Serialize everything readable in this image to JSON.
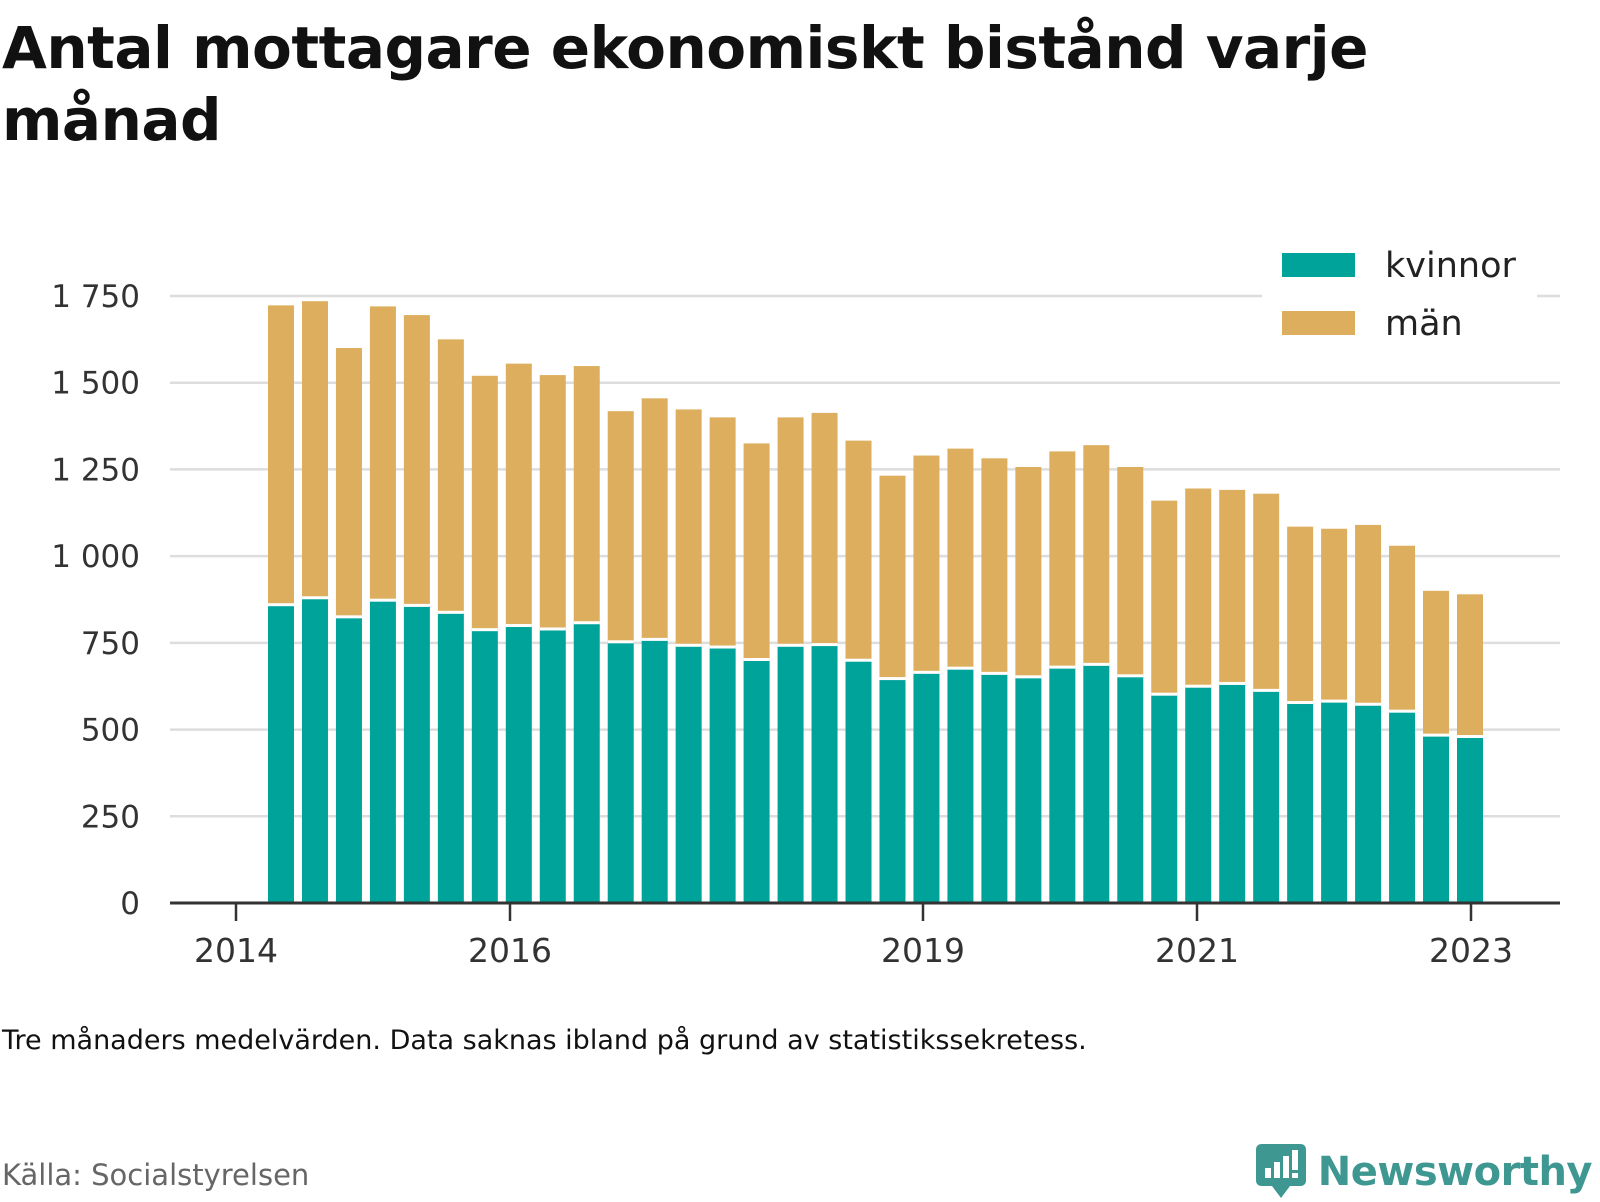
{
  "title": "Antal mottagare ekonomiskt bistånd varje månad",
  "note": "Tre månaders medelvärden. Data saknas ibland på grund av statistikssekretess.",
  "source": "Källa: Socialstyrelsen",
  "brand": "Newsworthy",
  "colors": {
    "kvinnor": "#00a399",
    "man": "#dcae5d",
    "grid": "#dddddd",
    "axis": "#333333"
  },
  "chart_data": {
    "type": "bar",
    "stacked": true,
    "x_tick_labels": [
      "2014",
      "2016",
      "2019",
      "2021",
      "2023"
    ],
    "y_ticks": [
      0,
      250,
      500,
      750,
      1000,
      1250,
      1500,
      1750
    ],
    "y_tick_labels": [
      "0",
      "250",
      "500",
      "750",
      "1 000",
      "1 250",
      "1 500",
      "1 750"
    ],
    "ylim": [
      0,
      1750
    ],
    "legend_position": "top-right",
    "grid": true,
    "series": [
      {
        "name": "kvinnor",
        "color": "#00a399",
        "values": [
          860,
          880,
          825,
          873,
          858,
          838,
          788,
          800,
          790,
          808,
          753,
          760,
          743,
          738,
          702,
          743,
          745,
          700,
          647,
          665,
          677,
          662,
          652,
          680,
          688,
          655,
          602,
          625,
          633,
          613,
          578,
          582,
          573,
          553,
          484,
          480
        ]
      },
      {
        "name": "män",
        "color": "#dcae5d",
        "values": [
          863,
          855,
          775,
          847,
          837,
          787,
          732,
          755,
          732,
          740,
          665,
          695,
          680,
          662,
          623,
          657,
          668,
          633,
          585,
          625,
          633,
          620,
          605,
          622,
          632,
          602,
          558,
          570,
          558,
          567,
          507,
          497,
          517,
          477,
          416,
          410
        ]
      }
    ]
  }
}
